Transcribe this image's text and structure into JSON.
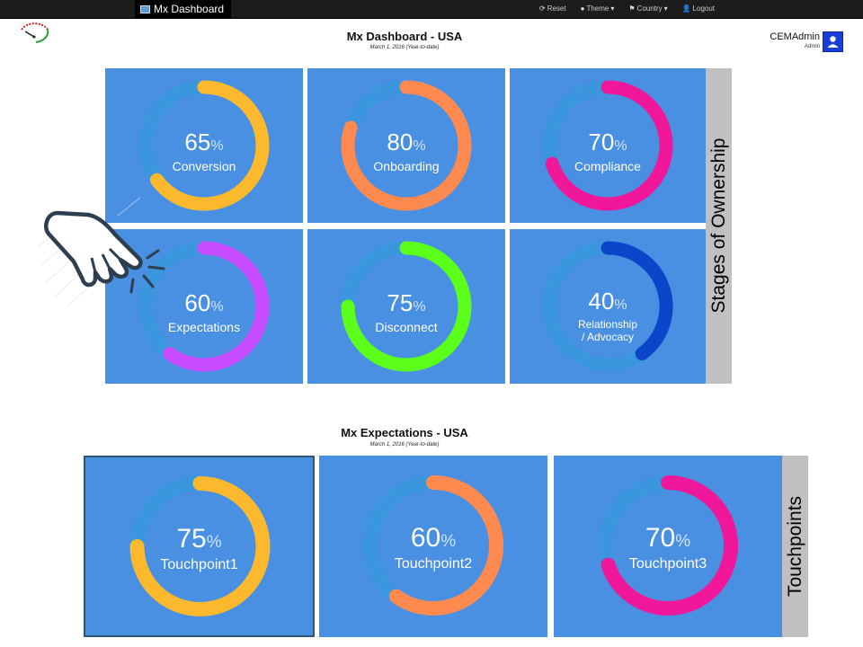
{
  "nav": {
    "brand": "Mx Dashboard",
    "links": [
      {
        "label": "Reset",
        "icon": "refresh-icon"
      },
      {
        "label": "Theme",
        "icon": "tint-icon"
      },
      {
        "label": "Country",
        "icon": "flag-icon"
      },
      {
        "label": "Logout",
        "icon": "user-icon"
      }
    ]
  },
  "header": {
    "title": "Mx Dashboard - USA",
    "subtitle": "March 1, 2016 (Year-to-date)"
  },
  "user": {
    "name": "CEMAdmin",
    "role": "Admin"
  },
  "stages": {
    "side_label": "Stages of Ownership",
    "tiles": [
      {
        "value": 65,
        "unit": "%",
        "label": "Conversion",
        "color": "#fdb92e"
      },
      {
        "value": 80,
        "unit": "%",
        "label": "Onboarding",
        "color": "#ff8a50"
      },
      {
        "value": 70,
        "unit": "%",
        "label": "Compliance",
        "color": "#f0179b"
      },
      {
        "value": 60,
        "unit": "%",
        "label": "Expectations",
        "color": "#c74bff"
      },
      {
        "value": 75,
        "unit": "%",
        "label": "Disconnect",
        "color": "#5cff1a"
      },
      {
        "value": 40,
        "unit": "%",
        "label": "Relationship / Advocacy",
        "label_line1": "Relationship",
        "label_line2": "/ Advocacy",
        "color": "#0a46c9"
      }
    ]
  },
  "expectations": {
    "title": "Mx Expectations - USA",
    "subtitle": "March 1, 2016 (Year-to-date)",
    "side_label": "Touchpoints",
    "tiles": [
      {
        "value": 75,
        "unit": "%",
        "label": "Touchpoint1",
        "color": "#fdb92e"
      },
      {
        "value": 60,
        "unit": "%",
        "label": "Touchpoint2",
        "color": "#ff8a50"
      },
      {
        "value": 70,
        "unit": "%",
        "label": "Touchpoint3",
        "color": "#f0179b"
      }
    ]
  },
  "colors": {
    "tile_bg": "#4a90e2",
    "ring_track": "#3a97dd",
    "navbar": "#1c1c1c",
    "sidebar": "#c0c0c0"
  }
}
